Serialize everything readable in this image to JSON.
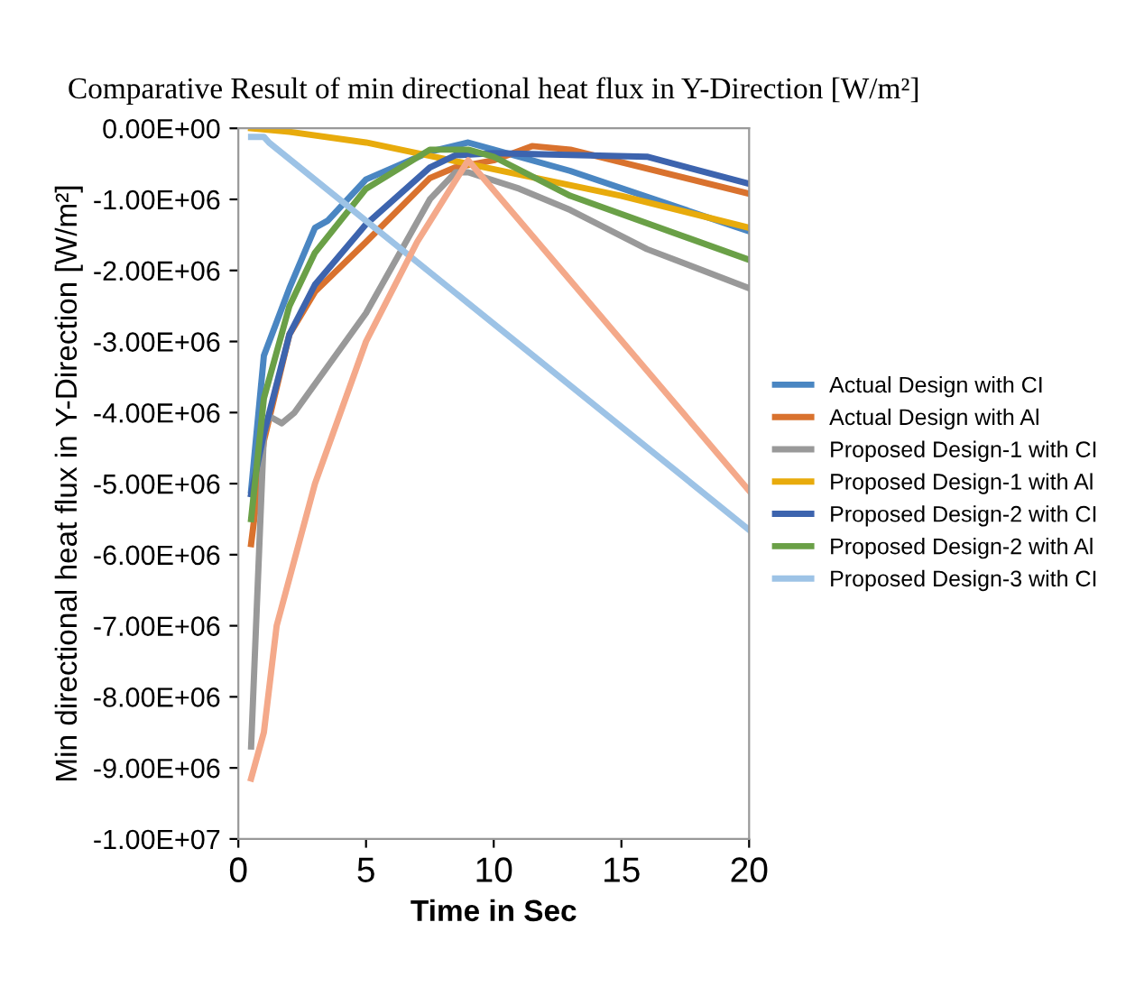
{
  "chart_data": {
    "type": "line",
    "title": "Comparative Result of min directional heat flux in Y-Direction [W/m²]",
    "xlabel": "Time in Sec",
    "ylabel": "Min directional heat flux in Y-Direction [W/m²]",
    "xlim": [
      0,
      20
    ],
    "xticks": [
      0,
      5,
      10,
      15,
      20
    ],
    "ylim": [
      -10000000,
      0
    ],
    "yticks": [
      {
        "value": 0,
        "label": "0.00E+00"
      },
      {
        "value": -1000000,
        "label": "-1.00E+06"
      },
      {
        "value": -2000000,
        "label": "-2.00E+06"
      },
      {
        "value": -3000000,
        "label": "-3.00E+06"
      },
      {
        "value": -4000000,
        "label": "-4.00E+06"
      },
      {
        "value": -5000000,
        "label": "-5.00E+06"
      },
      {
        "value": -6000000,
        "label": "-6.00E+06"
      },
      {
        "value": -7000000,
        "label": "-7.00E+06"
      },
      {
        "value": -8000000,
        "label": "-8.00E+06"
      },
      {
        "value": -9000000,
        "label": "-9.00E+06"
      },
      {
        "value": -10000000,
        "label": "-1.00E+07"
      }
    ],
    "grid": false,
    "legend": "right",
    "marker": "none",
    "line_style": "solid",
    "series": [
      {
        "name": "Actual Design with CI",
        "color": "#4a86c2",
        "x": [
          0.5,
          1,
          2,
          3,
          3.5,
          5,
          7.5,
          9,
          10,
          13,
          20
        ],
        "values": [
          -5100000,
          -3200000,
          -2250000,
          -1400000,
          -1300000,
          -720000,
          -330000,
          -200000,
          -300000,
          -600000,
          -1450000
        ]
      },
      {
        "name": "Actual Design with Al",
        "color": "#d9722e",
        "x": [
          0.5,
          1,
          2,
          3,
          5,
          7.5,
          8.5,
          10,
          11.5,
          13,
          20
        ],
        "values": [
          -5850000,
          -4400000,
          -2900000,
          -2300000,
          -1600000,
          -700000,
          -550000,
          -450000,
          -250000,
          -300000,
          -920000
        ]
      },
      {
        "name": "Proposed Design-1 with CI",
        "color": "#999999",
        "x": [
          0.5,
          1,
          1.2,
          1.7,
          2.2,
          3,
          5,
          7.5,
          8.5,
          9,
          11,
          13,
          16,
          20
        ],
        "values": [
          -8700000,
          -4300000,
          -4050000,
          -4150000,
          -4000000,
          -3600000,
          -2600000,
          -1000000,
          -620000,
          -620000,
          -850000,
          -1150000,
          -1700000,
          -2250000
        ]
      },
      {
        "name": "Proposed Design-1 with Al",
        "color": "#e8ab0c",
        "x": [
          0.5,
          2,
          5,
          9,
          15,
          20
        ],
        "values": [
          0,
          -50000,
          -200000,
          -500000,
          -950000,
          -1400000
        ]
      },
      {
        "name": "Proposed Design-2 with CI",
        "color": "#3d64ae",
        "x": [
          0.5,
          1,
          2,
          3,
          5,
          7.5,
          8.5,
          10,
          16,
          20
        ],
        "values": [
          -5150000,
          -4300000,
          -2900000,
          -2200000,
          -1350000,
          -550000,
          -380000,
          -350000,
          -400000,
          -780000
        ]
      },
      {
        "name": "Proposed Design-2 with Al",
        "color": "#6aa047",
        "x": [
          0.5,
          1,
          2,
          3,
          5,
          7.5,
          9,
          10,
          13,
          20
        ],
        "values": [
          -5500000,
          -3800000,
          -2500000,
          -1750000,
          -850000,
          -300000,
          -300000,
          -400000,
          -950000,
          -1850000
        ]
      },
      {
        "name": "Proposed Design-3 with CI",
        "color": "#9dc3e6",
        "x": [
          0.5,
          1,
          1.2,
          20
        ],
        "values": [
          -120000,
          -120000,
          -200000,
          -5650000
        ]
      },
      {
        "color": "#f4a98a",
        "x": [
          0.5,
          1,
          1.5,
          3,
          5,
          7,
          9,
          20
        ],
        "values": [
          -9150000,
          -8500000,
          -7000000,
          -5000000,
          -3000000,
          -1600000,
          -450000,
          -5100000
        ]
      }
    ]
  }
}
